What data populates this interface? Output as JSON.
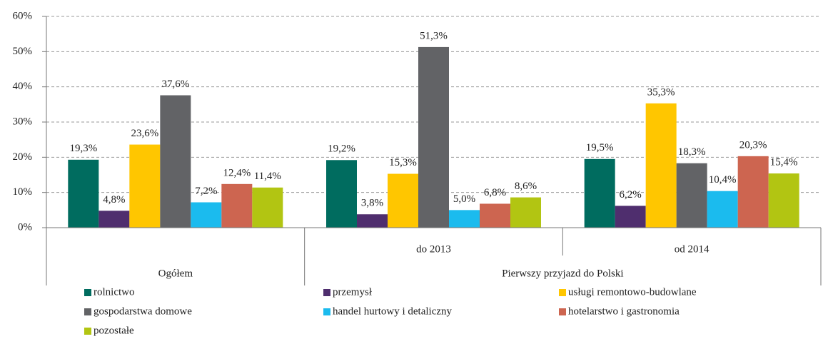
{
  "chart_data": {
    "type": "bar",
    "categories": [
      "Ogółem",
      "do 2013",
      "od 2014"
    ],
    "category_groups": [
      {
        "label": "Pierwszy przyjazd do Polski",
        "members": [
          "do 2013",
          "od 2014"
        ]
      }
    ],
    "series": [
      {
        "name": "rolnictwo",
        "color": "#006c5f",
        "values": [
          19.3,
          19.2,
          19.5
        ],
        "value_labels": [
          "19,3%",
          "19,2%",
          "19,5%"
        ]
      },
      {
        "name": "przemysł",
        "color": "#4f2e6e",
        "values": [
          4.8,
          3.8,
          6.2
        ],
        "value_labels": [
          "4,8%",
          "3,8%",
          "6,2%"
        ]
      },
      {
        "name": "usługi remontowo-budowlane",
        "color": "#ffc600",
        "values": [
          23.6,
          15.3,
          35.3
        ],
        "value_labels": [
          "23,6%",
          "15,3%",
          "35,3%"
        ]
      },
      {
        "name": "gospodarstwa domowe",
        "color": "#626366",
        "values": [
          37.6,
          51.3,
          18.3
        ],
        "value_labels": [
          "37,6%",
          "51,3%",
          "18,3%"
        ]
      },
      {
        "name": "handel hurtowy i detaliczny",
        "color": "#1bbbee",
        "values": [
          7.2,
          5.0,
          10.4
        ],
        "value_labels": [
          "7,2%",
          "5,0%",
          "10,4%"
        ]
      },
      {
        "name": "hotelarstwo i gastronomia",
        "color": "#cd6550",
        "values": [
          12.4,
          6.8,
          20.3
        ],
        "value_labels": [
          "12,4%",
          "6,8%",
          "20,3%"
        ]
      },
      {
        "name": "pozostałe",
        "color": "#b2c512",
        "values": [
          11.4,
          8.6,
          15.4
        ],
        "value_labels": [
          "11,4%",
          "8,6%",
          "15,4%"
        ]
      }
    ],
    "ylim": [
      0,
      60
    ],
    "yticks": [
      {
        "value": 0,
        "label": "0%"
      },
      {
        "value": 10,
        "label": "10%"
      },
      {
        "value": 20,
        "label": "20%"
      },
      {
        "value": 30,
        "label": "30%"
      },
      {
        "value": 40,
        "label": "40%"
      },
      {
        "value": 50,
        "label": "50%"
      },
      {
        "value": 60,
        "label": "60%"
      }
    ],
    "grid": true
  }
}
